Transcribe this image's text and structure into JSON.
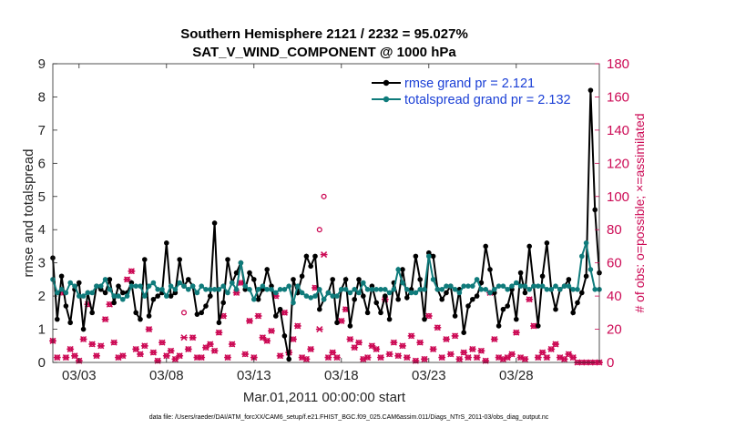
{
  "chart_data": {
    "type": "line",
    "title": "Southern Hemisphere 2121 / 2232 = 95.027%",
    "subtitle": "SAT_V_WIND_COMPONENT @ 1000 hPa",
    "xlabel": "Mar.01,2011 00:00:00 start",
    "ylabel": "rmse and totalspread",
    "y2label": "# of obs: o=possible; ×=assimilated",
    "footer": "data file: /Users/raeder/DAI/ATM_forcXX/CAM6_setup/f.e21.FHIST_BGC.f09_025.CAM6assim.011/Diags_NTrS_2011-03/obs_diag_output.nc",
    "xlim": [
      1.5,
      32.75
    ],
    "ylim": [
      0,
      9
    ],
    "y2lim": [
      0,
      180
    ],
    "xticks": [
      3,
      8,
      13,
      18,
      23,
      28
    ],
    "xtick_labels": [
      "03/03",
      "03/08",
      "03/13",
      "03/18",
      "03/23",
      "03/28"
    ],
    "yticks": [
      0,
      1,
      2,
      3,
      4,
      5,
      6,
      7,
      8,
      9
    ],
    "y2ticks": [
      0,
      20,
      40,
      60,
      80,
      100,
      120,
      140,
      160,
      180
    ],
    "colors": {
      "rmse": "#000000",
      "spread": "#0f7b7b",
      "obs": "#cc0a55",
      "legend_text": "#1a3fd6"
    },
    "legend": [
      {
        "name": "rmse grand pr = 2.121",
        "color": "#000000"
      },
      {
        "name": "totalspread grand pr = 2.132",
        "color": "#0f7b7b"
      }
    ],
    "series": [
      {
        "name": "rmse",
        "x": [
          1.5,
          1.75,
          2.0,
          2.25,
          2.5,
          2.75,
          3.0,
          3.25,
          3.5,
          3.75,
          4.0,
          4.25,
          4.5,
          4.75,
          5.0,
          5.25,
          5.5,
          5.75,
          6.0,
          6.25,
          6.5,
          6.75,
          7.0,
          7.25,
          7.5,
          7.75,
          8.0,
          8.25,
          8.5,
          8.75,
          9.0,
          9.25,
          9.5,
          9.75,
          10.0,
          10.25,
          10.5,
          10.75,
          11.0,
          11.25,
          11.5,
          11.75,
          12.0,
          12.25,
          12.5,
          12.75,
          13.0,
          13.25,
          13.5,
          13.75,
          14.0,
          14.25,
          14.5,
          14.75,
          15.0,
          15.25,
          15.5,
          15.75,
          16.0,
          16.25,
          16.5,
          16.75,
          17.0,
          17.25,
          17.5,
          17.75,
          18.0,
          18.25,
          18.5,
          18.75,
          19.0,
          19.25,
          19.5,
          19.75,
          20.0,
          20.25,
          20.5,
          20.75,
          21.0,
          21.25,
          21.5,
          21.75,
          22.0,
          22.25,
          22.5,
          22.75,
          23.0,
          23.25,
          23.5,
          23.75,
          24.0,
          24.25,
          24.5,
          24.75,
          25.0,
          25.25,
          25.5,
          25.75,
          26.0,
          26.25,
          26.5,
          26.75,
          27.0,
          27.25,
          27.5,
          27.75,
          28.0,
          28.25,
          28.5,
          28.75,
          29.0,
          29.25,
          29.5,
          29.75,
          30.0,
          30.25,
          30.5,
          30.75,
          31.0,
          31.25,
          31.5,
          31.75,
          32.0,
          32.25,
          32.5,
          32.75
        ],
        "values": [
          3.15,
          1.3,
          2.6,
          1.7,
          1.2,
          2.2,
          2.4,
          1.0,
          2.1,
          1.5,
          2.3,
          2.2,
          2.1,
          2.5,
          1.8,
          2.3,
          2.1,
          2.1,
          2.4,
          1.5,
          1.3,
          3.1,
          1.4,
          1.9,
          2.0,
          2.1,
          3.6,
          2.0,
          2.1,
          3.1,
          2.3,
          2.5,
          2.3,
          1.45,
          1.5,
          1.7,
          2.0,
          4.2,
          1.2,
          1.8,
          3.1,
          2.4,
          2.7,
          3.0,
          2.2,
          2.7,
          2.5,
          1.9,
          2.2,
          2.8,
          2.3,
          1.4,
          1.6,
          0.8,
          0.1,
          2.5,
          2.1,
          2.6,
          3.2,
          2.9,
          3.2,
          1.6,
          1.9,
          2.1,
          2.5,
          1.2,
          2.2,
          2.5,
          1.1,
          1.9,
          2.5,
          2.0,
          1.5,
          2.3,
          1.8,
          1.5,
          2.0,
          1.3,
          2.4,
          1.9,
          2.8,
          1.95,
          2.2,
          3.2,
          2.5,
          1.3,
          3.3,
          3.2,
          2.2,
          1.9,
          2.1,
          2.3,
          1.4,
          2.2,
          0.9,
          1.7,
          1.9,
          2.0,
          2.4,
          3.5,
          2.8,
          2.1,
          1.1,
          1.6,
          1.7,
          2.2,
          1.3,
          2.7,
          2.1,
          3.5,
          2.3,
          1.1,
          2.6,
          3.6,
          2.2,
          1.6,
          2.2,
          2.3,
          2.5,
          1.5,
          1.8,
          2.1,
          2.6,
          8.2,
          4.6,
          2.7
        ]
      },
      {
        "name": "totalspread",
        "x": [
          1.5,
          1.75,
          2.0,
          2.25,
          2.5,
          2.75,
          3.0,
          3.25,
          3.5,
          3.75,
          4.0,
          4.25,
          4.5,
          4.75,
          5.0,
          5.25,
          5.5,
          5.75,
          6.0,
          6.25,
          6.5,
          6.75,
          7.0,
          7.25,
          7.5,
          7.75,
          8.0,
          8.25,
          8.5,
          8.75,
          9.0,
          9.25,
          9.5,
          9.75,
          10.0,
          10.25,
          10.5,
          10.75,
          11.0,
          11.25,
          11.5,
          11.75,
          12.0,
          12.25,
          12.5,
          12.75,
          13.0,
          13.25,
          13.5,
          13.75,
          14.0,
          14.25,
          14.5,
          14.75,
          15.0,
          15.25,
          15.5,
          15.75,
          16.0,
          16.25,
          16.5,
          16.75,
          17.0,
          17.25,
          17.5,
          17.75,
          18.0,
          18.25,
          18.5,
          18.75,
          19.0,
          19.25,
          19.5,
          19.75,
          20.0,
          20.25,
          20.5,
          20.75,
          21.0,
          21.25,
          21.5,
          21.75,
          22.0,
          22.25,
          22.5,
          22.75,
          23.0,
          23.25,
          23.5,
          23.75,
          24.0,
          24.25,
          24.5,
          24.75,
          25.0,
          25.25,
          25.5,
          25.75,
          26.0,
          26.25,
          26.5,
          26.75,
          27.0,
          27.25,
          27.5,
          27.75,
          28.0,
          28.25,
          28.5,
          28.75,
          29.0,
          29.25,
          29.5,
          29.75,
          30.0,
          30.25,
          30.5,
          30.75,
          31.0,
          31.25,
          31.5,
          31.75,
          32.0,
          32.25,
          32.5,
          32.75
        ],
        "values": [
          2.5,
          2.1,
          2.2,
          2.1,
          2.4,
          2.3,
          2.0,
          2.0,
          2.1,
          2.1,
          2.3,
          2.3,
          2.5,
          2.2,
          2.0,
          2.0,
          1.9,
          2.0,
          2.3,
          2.3,
          2.3,
          2.0,
          2.3,
          2.4,
          2.2,
          2.2,
          2.0,
          2.3,
          2.2,
          2.4,
          2.3,
          2.2,
          2.3,
          2.1,
          2.3,
          2.2,
          2.2,
          2.2,
          2.2,
          2.3,
          2.1,
          2.4,
          2.2,
          3.0,
          2.3,
          2.2,
          1.9,
          2.2,
          2.3,
          2.2,
          2.2,
          2.1,
          2.2,
          2.2,
          2.3,
          1.8,
          2.3,
          2.1,
          2.0,
          1.95,
          2.0,
          2.2,
          1.9,
          2.1,
          2.0,
          2.0,
          2.2,
          2.2,
          2.1,
          2.2,
          2.1,
          2.4,
          2.2,
          2.2,
          2.2,
          2.2,
          2.2,
          2.1,
          2.2,
          2.8,
          2.4,
          2.2,
          2.1,
          2.1,
          2.2,
          2.2,
          3.2,
          2.5,
          2.2,
          2.2,
          2.3,
          2.3,
          2.2,
          2.1,
          2.3,
          2.3,
          2.3,
          2.5,
          2.2,
          2.2,
          2.1,
          2.2,
          2.3,
          2.3,
          2.2,
          2.3,
          2.4,
          2.3,
          2.3,
          2.2,
          2.3,
          2.3,
          2.3,
          2.2,
          2.2,
          2.3,
          2.2,
          2.3,
          2.3,
          2.2,
          2.2,
          3.2,
          3.6,
          2.8,
          2.2,
          2.2
        ]
      }
    ],
    "obs_assimilated": {
      "x": [
        1.5,
        1.75,
        2.0,
        2.25,
        2.5,
        2.75,
        3.0,
        3.25,
        3.5,
        3.75,
        4.0,
        4.25,
        4.5,
        4.75,
        5.0,
        5.25,
        5.5,
        5.75,
        6.0,
        6.25,
        6.5,
        6.75,
        7.0,
        7.25,
        7.5,
        7.75,
        8.0,
        8.25,
        8.5,
        8.75,
        9.0,
        9.25,
        9.5,
        9.75,
        10.0,
        10.25,
        10.5,
        10.75,
        11.0,
        11.25,
        11.5,
        11.75,
        12.0,
        12.25,
        12.5,
        12.75,
        13.0,
        13.25,
        13.5,
        13.75,
        14.0,
        14.25,
        14.5,
        14.75,
        15.0,
        15.25,
        15.5,
        15.75,
        16.0,
        16.25,
        16.5,
        16.75,
        17.0,
        17.25,
        17.5,
        17.75,
        18.0,
        18.25,
        18.5,
        18.75,
        19.0,
        19.25,
        19.5,
        19.75,
        20.0,
        20.25,
        20.5,
        20.75,
        21.0,
        21.25,
        21.5,
        21.75,
        22.0,
        22.25,
        22.5,
        22.75,
        23.0,
        23.25,
        23.5,
        23.75,
        24.0,
        24.25,
        24.5,
        24.75,
        25.0,
        25.25,
        25.5,
        25.75,
        26.0,
        26.25,
        26.5,
        26.75,
        27.0,
        27.25,
        27.5,
        27.75,
        28.0,
        28.25,
        28.5,
        28.75,
        29.0,
        29.25,
        29.5,
        29.75,
        30.0,
        30.25,
        30.5,
        30.75,
        31.0,
        31.25,
        31.5,
        31.75,
        32.0,
        32.25,
        32.5,
        32.75
      ],
      "values": [
        13,
        3,
        42,
        3,
        8,
        4,
        1,
        14,
        35,
        11,
        4,
        10,
        26,
        35,
        12,
        3,
        4,
        50,
        55,
        8,
        5,
        10,
        20,
        6,
        1,
        12,
        4,
        7,
        2,
        4,
        15,
        8,
        15,
        3,
        3,
        9,
        11,
        7,
        18,
        28,
        3,
        11,
        42,
        48,
        5,
        25,
        3,
        28,
        15,
        13,
        19,
        40,
        4,
        30,
        6,
        14,
        22,
        3,
        2,
        8,
        45,
        20,
        65,
        3,
        6,
        3,
        25,
        32,
        14,
        9,
        12,
        2,
        3,
        10,
        8,
        3,
        38,
        5,
        12,
        4,
        10,
        3,
        16,
        1,
        12,
        2,
        28,
        8,
        21,
        3,
        14,
        5,
        16,
        2,
        6,
        3,
        8,
        3,
        7,
        1,
        42,
        14,
        3,
        2,
        3,
        5,
        18,
        3,
        2,
        38,
        22,
        3,
        6,
        3,
        8,
        11,
        3,
        2,
        5,
        3,
        0,
        0,
        0,
        0,
        0,
        0
      ]
    },
    "obs_possible": {
      "x": [
        1.5,
        1.75,
        2.0,
        2.25,
        2.5,
        2.75,
        3.0,
        3.25,
        3.5,
        3.75,
        4.0,
        4.25,
        4.5,
        4.75,
        5.0,
        5.25,
        5.5,
        5.75,
        6.0,
        6.25,
        6.5,
        6.75,
        7.0,
        7.25,
        7.5,
        7.75,
        8.0,
        8.25,
        8.5,
        8.75,
        9.0,
        9.25,
        9.5,
        9.75,
        10.0,
        10.25,
        10.5,
        10.75,
        11.0,
        11.25,
        11.5,
        11.75,
        12.0,
        12.25,
        12.5,
        12.75,
        13.0,
        13.25,
        13.5,
        13.75,
        14.0,
        14.25,
        14.5,
        14.75,
        15.0,
        15.25,
        15.5,
        15.75,
        16.0,
        16.25,
        16.5,
        16.75,
        17.0,
        17.25,
        17.5,
        17.75,
        18.0,
        18.25,
        18.5,
        18.75,
        19.0,
        19.25,
        19.5,
        19.75,
        20.0,
        20.25,
        20.5,
        20.75,
        21.0,
        21.25,
        21.5,
        21.75,
        22.0,
        22.25,
        22.5,
        22.75,
        23.0,
        23.25,
        23.5,
        23.75,
        24.0,
        24.25,
        24.5,
        24.75,
        25.0,
        25.25,
        25.5,
        25.75,
        26.0,
        26.25,
        26.5,
        26.75,
        27.0,
        27.25,
        27.5,
        27.75,
        28.0,
        28.25,
        28.5,
        28.75,
        29.0,
        29.25,
        29.5,
        29.75,
        30.0,
        30.25,
        30.5,
        30.75,
        31.0,
        31.25,
        31.5,
        31.75,
        32.0,
        32.25,
        32.5,
        32.75
      ],
      "values": [
        13,
        3,
        42,
        3,
        8,
        4,
        1,
        14,
        35,
        11,
        4,
        10,
        26,
        35,
        12,
        3,
        4,
        50,
        55,
        8,
        5,
        10,
        20,
        6,
        1,
        12,
        4,
        7,
        2,
        4,
        30,
        8,
        15,
        3,
        3,
        9,
        11,
        7,
        18,
        28,
        3,
        11,
        42,
        48,
        5,
        25,
        3,
        28,
        15,
        13,
        19,
        40,
        4,
        30,
        6,
        14,
        22,
        3,
        2,
        8,
        45,
        80,
        100,
        3,
        6,
        3,
        25,
        32,
        14,
        9,
        12,
        2,
        3,
        10,
        8,
        3,
        38,
        5,
        12,
        4,
        10,
        3,
        16,
        1,
        12,
        2,
        28,
        8,
        21,
        3,
        14,
        5,
        16,
        2,
        6,
        3,
        8,
        3,
        7,
        1,
        42,
        14,
        3,
        2,
        3,
        5,
        18,
        3,
        2,
        38,
        22,
        3,
        6,
        3,
        8,
        11,
        3,
        2,
        5,
        3,
        0,
        0,
        0,
        0,
        0,
        0
      ]
    }
  }
}
